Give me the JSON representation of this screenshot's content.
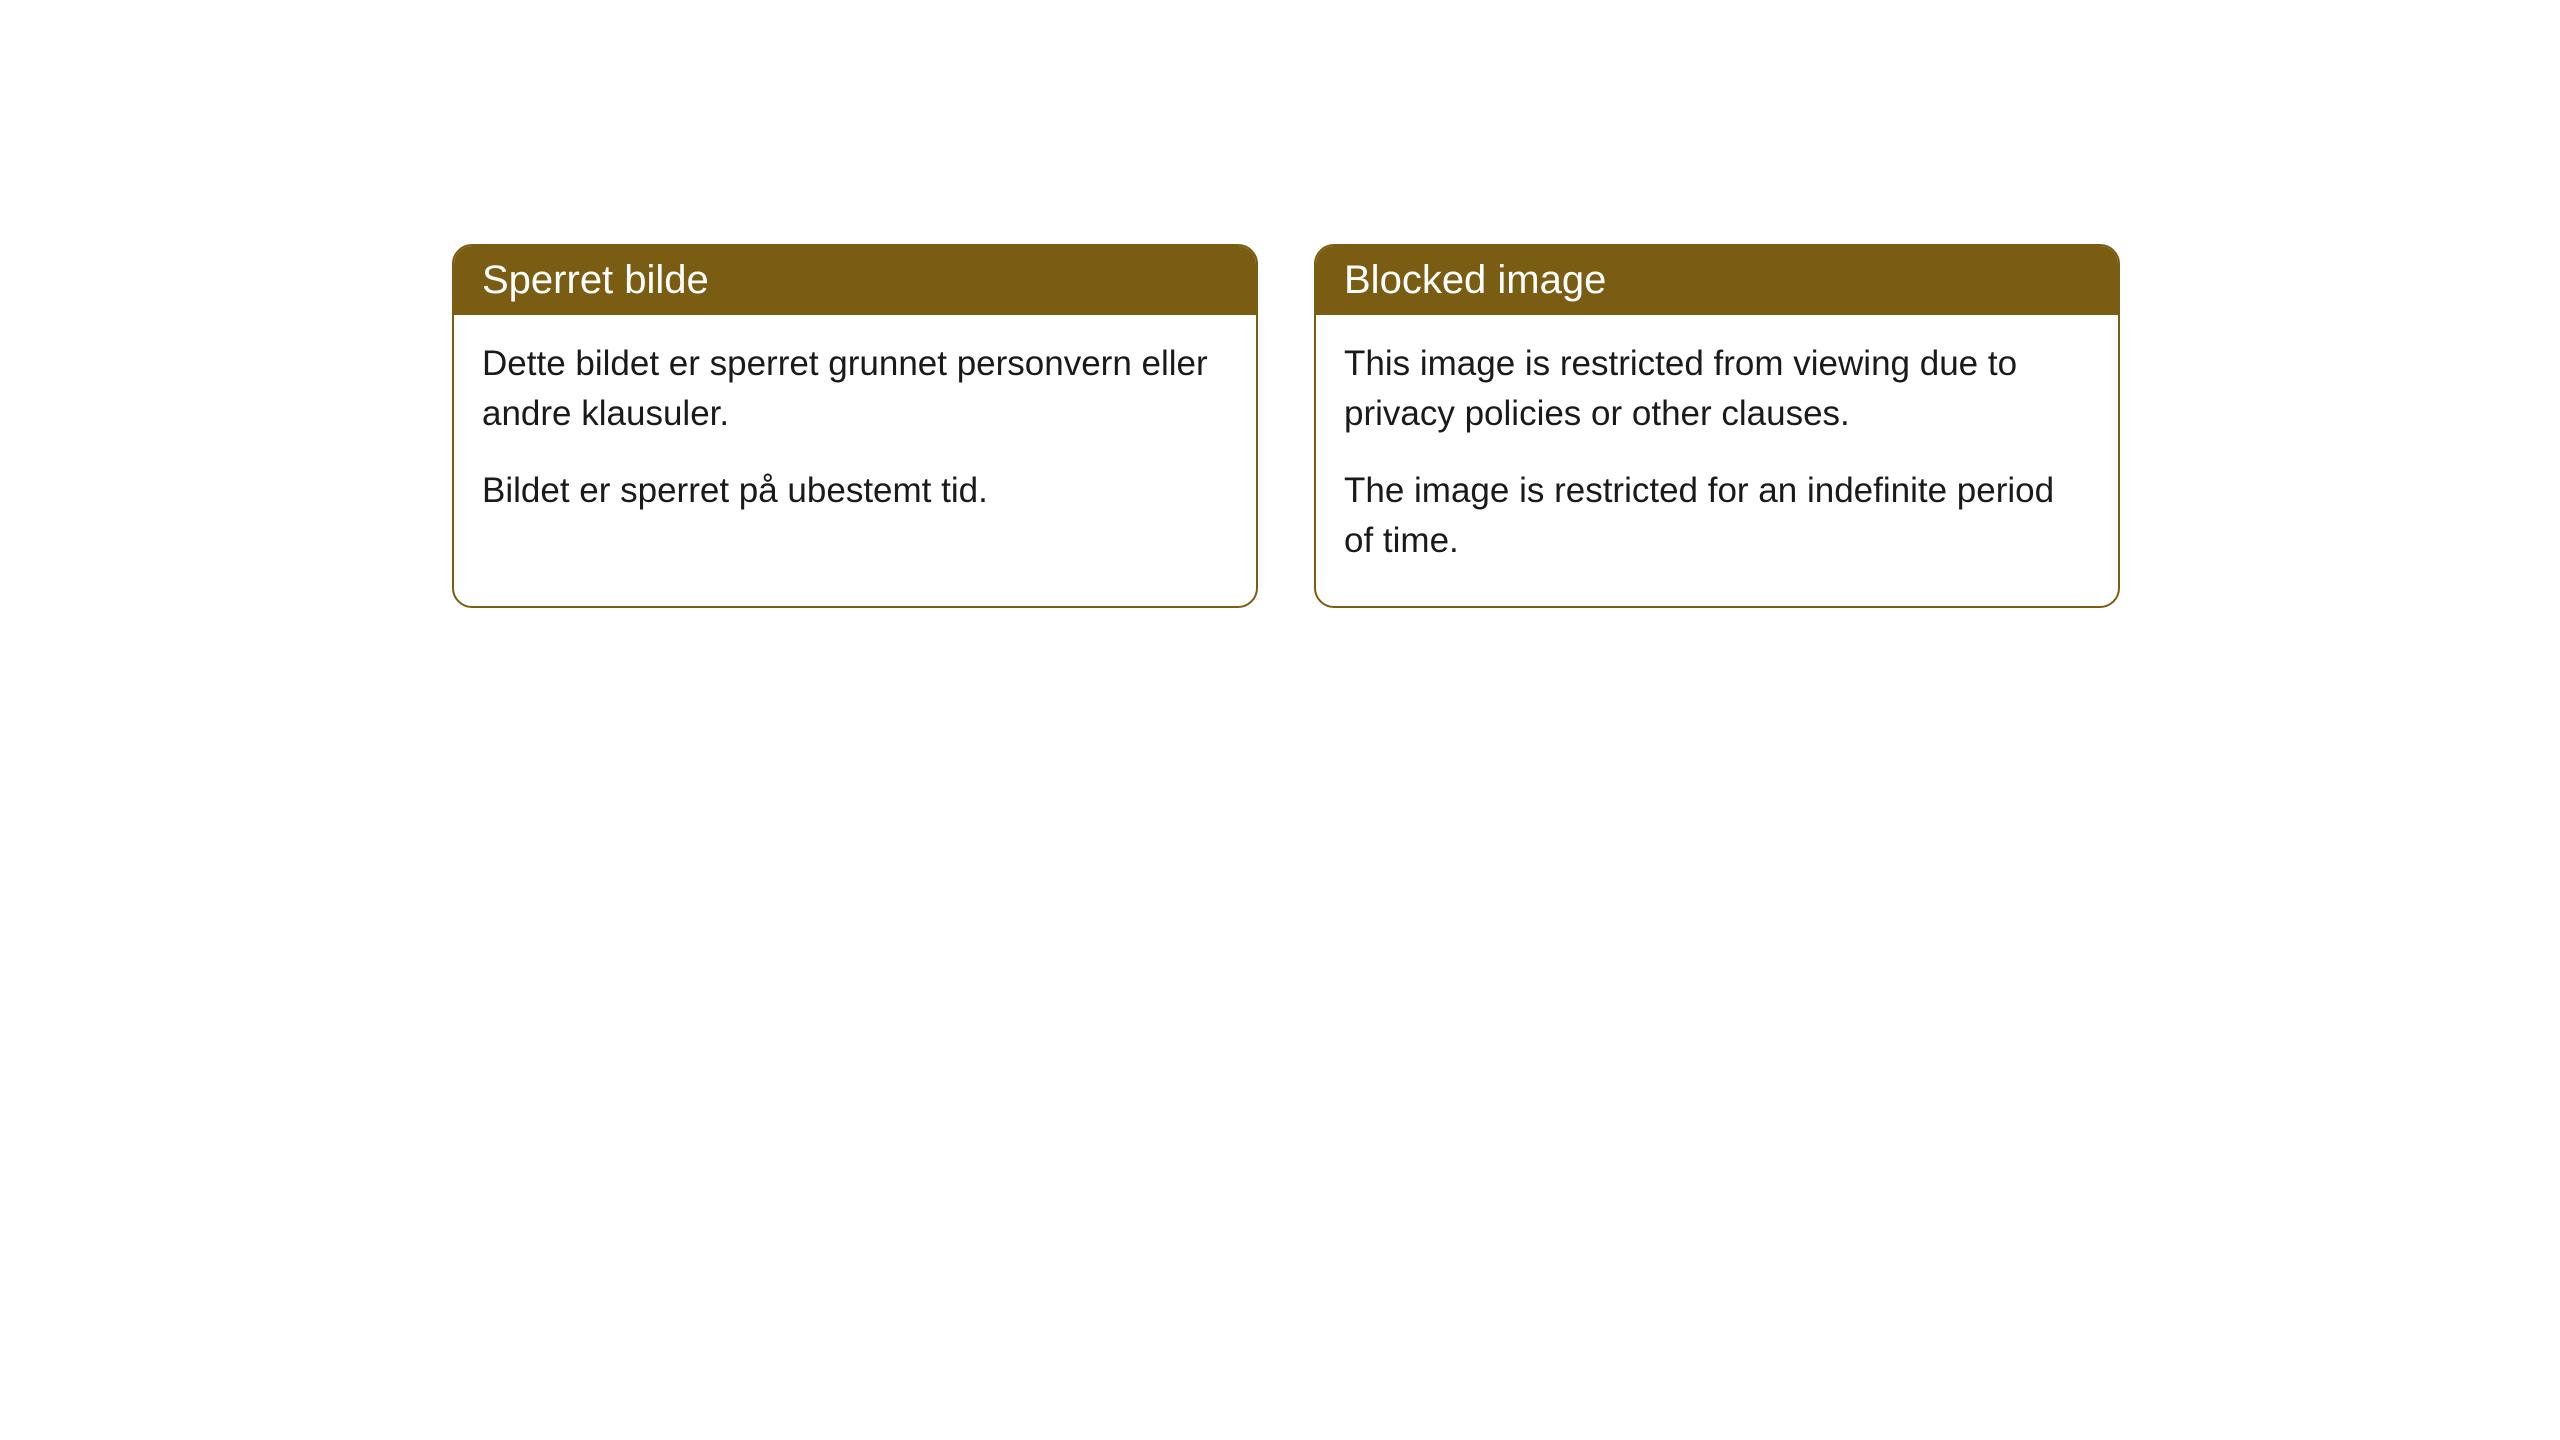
{
  "cards": [
    {
      "title": "Sperret bilde",
      "paragraph1": "Dette bildet er sperret grunnet personvern eller andre klausuler.",
      "paragraph2": "Bildet er sperret på ubestemt tid."
    },
    {
      "title": "Blocked image",
      "paragraph1": "This image is restricted from viewing due to privacy policies or other clauses.",
      "paragraph2": "The image is restricted for an indefinite period of time."
    }
  ],
  "style": {
    "header_background": "#7a5c13",
    "header_text_color": "#ffffff",
    "border_color": "#7a5c13",
    "body_background": "#ffffff",
    "body_text_color": "#1a1a1a",
    "border_radius": 20,
    "header_fontsize": 40,
    "body_fontsize": 35
  }
}
